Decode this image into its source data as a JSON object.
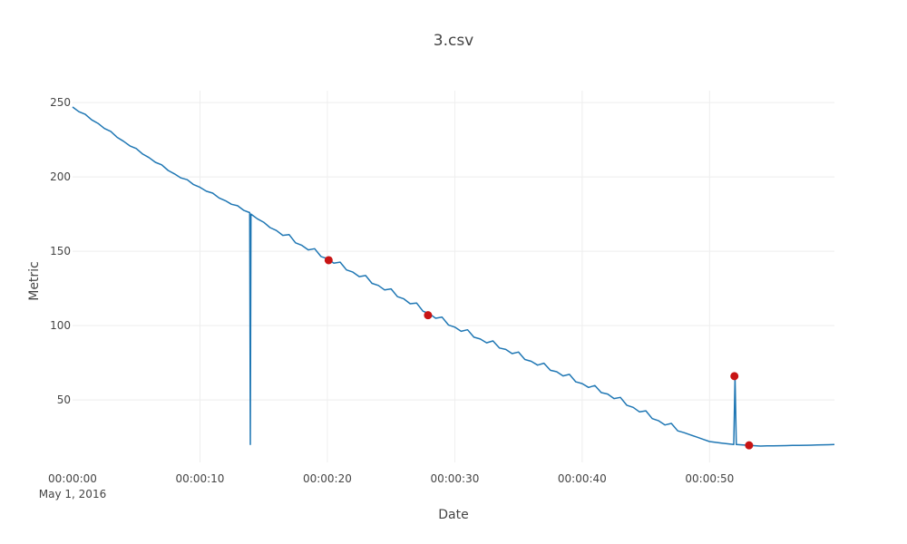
{
  "chart_data": {
    "type": "line",
    "title": "3.csv",
    "xlabel": "Date",
    "ylabel": "Metric",
    "x_unit": "seconds since 2016-05-01 00:00:00",
    "xlim": [
      0,
      59.8
    ],
    "ylim": [
      8,
      258
    ],
    "x_ticks": [
      {
        "value": 0,
        "label": "00:00:00",
        "sublabel": "May 1, 2016"
      },
      {
        "value": 10,
        "label": "00:00:10"
      },
      {
        "value": 20,
        "label": "00:00:20"
      },
      {
        "value": 30,
        "label": "00:00:30"
      },
      {
        "value": 40,
        "label": "00:00:40"
      },
      {
        "value": 50,
        "label": "00:00:50"
      }
    ],
    "y_ticks": [
      50,
      100,
      150,
      200,
      250
    ],
    "grid": true,
    "series": [
      {
        "name": "",
        "color": "#1f77b4",
        "points": [
          [
            0,
            247
          ],
          [
            2,
            236
          ],
          [
            4,
            224
          ],
          [
            6,
            213
          ],
          [
            8,
            202
          ],
          [
            10,
            193
          ],
          [
            12,
            184
          ],
          [
            13.9,
            176
          ],
          [
            13.95,
            20
          ],
          [
            14.0,
            175
          ],
          [
            16,
            164
          ],
          [
            18,
            154
          ],
          [
            20,
            145
          ],
          [
            22,
            136
          ],
          [
            24,
            127
          ],
          [
            26,
            118
          ],
          [
            28,
            108
          ],
          [
            30,
            99
          ],
          [
            32,
            91
          ],
          [
            34,
            84
          ],
          [
            36,
            76
          ],
          [
            38,
            69
          ],
          [
            40,
            61
          ],
          [
            42,
            54
          ],
          [
            44,
            45
          ],
          [
            46,
            36
          ],
          [
            48,
            28
          ],
          [
            50,
            22
          ],
          [
            51.9,
            20
          ],
          [
            52.0,
            66
          ],
          [
            52.1,
            20
          ],
          [
            53,
            19.5
          ],
          [
            54,
            19
          ],
          [
            56,
            19.3
          ],
          [
            58,
            19.6
          ],
          [
            59.8,
            20
          ]
        ]
      }
    ],
    "markers": {
      "color": "#c81414",
      "points": [
        [
          20.1,
          144
        ],
        [
          27.9,
          107
        ],
        [
          51.95,
          66
        ],
        [
          53.1,
          19.5
        ]
      ]
    }
  }
}
